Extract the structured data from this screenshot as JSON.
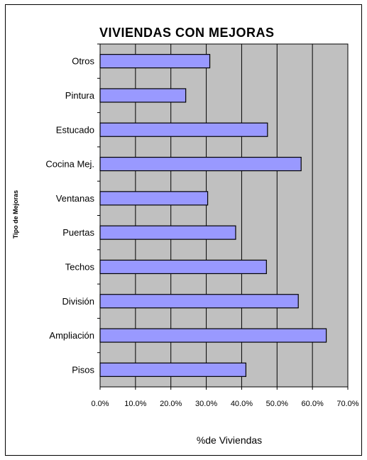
{
  "chart_data": {
    "type": "bar",
    "orientation": "horizontal",
    "title": "VIVIENDAS CON MEJORAS",
    "xlabel": "%de Viviendas",
    "ylabel": "Tipo de Mejoras",
    "categories": [
      "Otros",
      "Pintura",
      "Estucado",
      "Cocina Mej.",
      "Ventanas",
      "Puertas",
      "Techos",
      "División",
      "Ampliación",
      "Pisos"
    ],
    "values": [
      31.0,
      24.2,
      47.3,
      56.8,
      30.4,
      38.3,
      47.0,
      56.0,
      63.9,
      41.2
    ],
    "xlim": [
      0,
      70
    ],
    "xticks": [
      "0.0%",
      "10.0%",
      "20.0%",
      "30.0%",
      "40.0%",
      "50.0%",
      "60.0%",
      "70.0%"
    ],
    "grid": true,
    "legend": "none",
    "colors": {
      "bar_fill": "#9999ff",
      "bar_stroke": "#000000",
      "plot_background": "#c0c0c0",
      "grid_line": "#000000"
    }
  }
}
